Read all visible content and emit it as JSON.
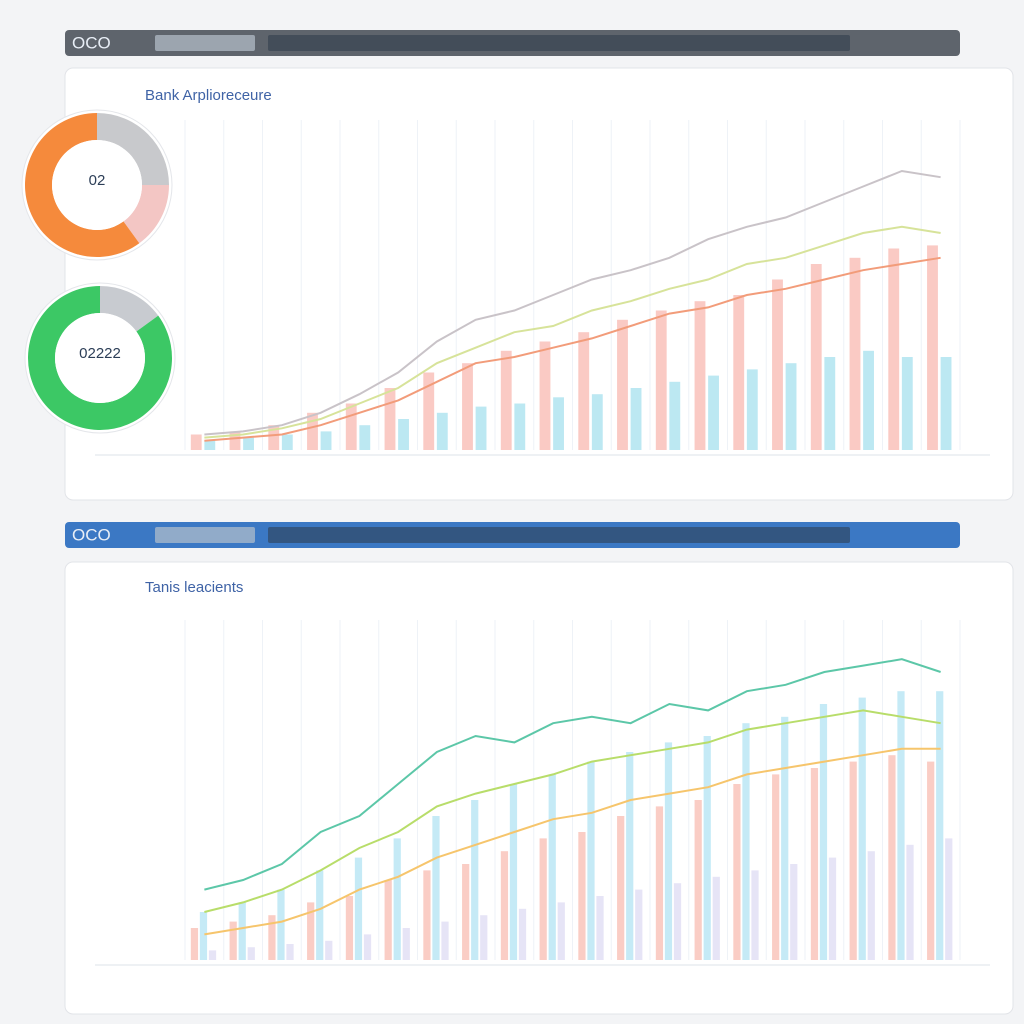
{
  "chart_data": [
    {
      "type": "combo",
      "window": "OCO",
      "title": "Bank Arplioreceure",
      "header_color": "#5e646c",
      "ylim": [
        0,
        100
      ],
      "series": [
        {
          "type": "bar",
          "color": "#f7a79c",
          "values": [
            5,
            6,
            8,
            12,
            15,
            20,
            25,
            28,
            32,
            35,
            38,
            42,
            45,
            48,
            50,
            55,
            60,
            62,
            65,
            66
          ]
        },
        {
          "type": "bar",
          "color": "#8fd8ea",
          "values": [
            3,
            4,
            5,
            6,
            8,
            10,
            12,
            14,
            15,
            17,
            18,
            20,
            22,
            24,
            26,
            28,
            30,
            32,
            30,
            30
          ]
        },
        {
          "type": "line",
          "color": "#c9c3c8",
          "values": [
            5,
            6,
            8,
            12,
            18,
            25,
            35,
            42,
            45,
            50,
            55,
            58,
            62,
            68,
            72,
            75,
            80,
            85,
            90,
            88
          ]
        },
        {
          "type": "line",
          "color": "#d7e39a",
          "values": [
            4,
            5,
            7,
            10,
            15,
            20,
            28,
            33,
            38,
            40,
            45,
            48,
            52,
            55,
            60,
            62,
            66,
            70,
            72,
            70
          ]
        },
        {
          "type": "line",
          "color": "#f29c7a",
          "values": [
            3,
            4,
            5,
            8,
            12,
            16,
            22,
            28,
            30,
            33,
            36,
            40,
            44,
            46,
            50,
            52,
            55,
            58,
            60,
            62
          ]
        }
      ]
    },
    {
      "type": "combo",
      "window": "OCO",
      "title": "Tanis leacients",
      "header_color": "#3b78c4",
      "ylim": [
        0,
        100
      ],
      "series": [
        {
          "type": "bar",
          "color": "#f7ab9e",
          "values": [
            10,
            12,
            14,
            18,
            20,
            25,
            28,
            30,
            34,
            38,
            40,
            45,
            48,
            50,
            55,
            58,
            60,
            62,
            64,
            62
          ]
        },
        {
          "type": "bar",
          "color": "#9fdcf0",
          "values": [
            15,
            18,
            22,
            28,
            32,
            38,
            45,
            50,
            55,
            58,
            62,
            65,
            68,
            70,
            74,
            76,
            80,
            82,
            84,
            84
          ]
        },
        {
          "type": "bar",
          "color": "#d6d2f0",
          "values": [
            3,
            4,
            5,
            6,
            8,
            10,
            12,
            14,
            16,
            18,
            20,
            22,
            24,
            26,
            28,
            30,
            32,
            34,
            36,
            38
          ]
        },
        {
          "type": "line",
          "color": "#5cc7a8",
          "values": [
            22,
            25,
            30,
            40,
            45,
            55,
            65,
            70,
            68,
            74,
            76,
            74,
            80,
            78,
            84,
            86,
            90,
            92,
            94,
            90
          ]
        },
        {
          "type": "line",
          "color": "#b8dd6a",
          "values": [
            15,
            18,
            22,
            28,
            35,
            40,
            48,
            52,
            55,
            58,
            62,
            64,
            66,
            68,
            72,
            74,
            76,
            78,
            76,
            74
          ]
        },
        {
          "type": "line",
          "color": "#f6c56c",
          "values": [
            8,
            10,
            12,
            16,
            22,
            26,
            32,
            36,
            40,
            44,
            46,
            50,
            52,
            54,
            58,
            60,
            62,
            64,
            66,
            66
          ]
        }
      ]
    },
    {
      "type": "donut",
      "center_label": "02",
      "slices": [
        {
          "color": "#c8c9cc",
          "value": 25
        },
        {
          "color": "#f3c6c4",
          "value": 15
        },
        {
          "color": "#f58a3c",
          "value": 60
        }
      ]
    },
    {
      "type": "donut",
      "center_label": "02222",
      "slices": [
        {
          "color": "#c8cbd0",
          "value": 15
        },
        {
          "color": "#3cc865",
          "value": 85
        }
      ]
    }
  ]
}
